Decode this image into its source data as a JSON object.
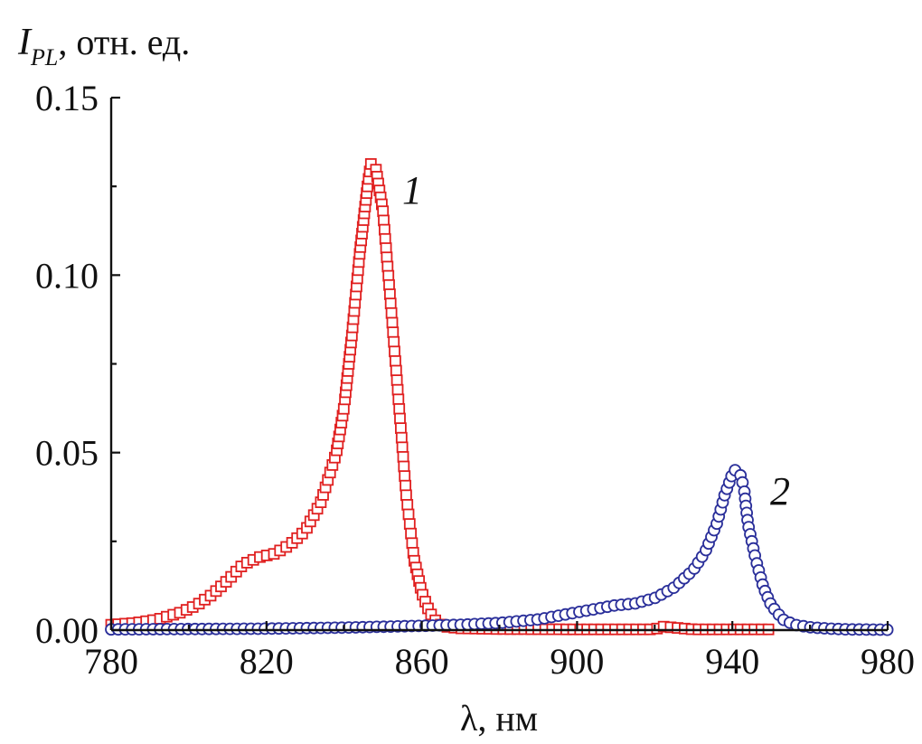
{
  "chart_data": {
    "type": "scatter",
    "title": "",
    "xlabel": "λ, нм",
    "ylabel": {
      "main": "I",
      "sub": "PL",
      "rest": ", отн. ед."
    },
    "xlim": [
      780,
      980
    ],
    "ylim": [
      0,
      0.15
    ],
    "x_ticks": [
      "780",
      "820",
      "860",
      "900",
      "940",
      "980"
    ],
    "y_ticks": [
      "0.00",
      "0.05",
      "0.10",
      "0.15"
    ],
    "grid": false,
    "legend": "none",
    "series": [
      {
        "label": "1",
        "color": "#e02020",
        "marker": "square-open",
        "line": true,
        "x": [
          780,
          786,
          792,
          798,
          802,
          806,
          810,
          814,
          818,
          822,
          826,
          830,
          834,
          838,
          840,
          842,
          844,
          846,
          847,
          848,
          850,
          852,
          854,
          856,
          858,
          860,
          862,
          864,
          866,
          870,
          880,
          900,
          920,
          922,
          930,
          940,
          950
        ],
        "y": [
          0.0015,
          0.002,
          0.003,
          0.005,
          0.007,
          0.01,
          0.014,
          0.0185,
          0.0205,
          0.0215,
          0.024,
          0.028,
          0.036,
          0.05,
          0.063,
          0.083,
          0.106,
          0.125,
          0.132,
          0.131,
          0.118,
          0.092,
          0.065,
          0.038,
          0.02,
          0.0105,
          0.005,
          0.002,
          0.001,
          0.0005,
          0.0003,
          0.0002,
          0.0002,
          0.001,
          0.0002,
          0.0002,
          0.0002
        ]
      },
      {
        "label": "2",
        "color": "#2a2f9a",
        "marker": "circle-open",
        "line": true,
        "x": [
          780,
          800,
          820,
          840,
          860,
          870,
          880,
          890,
          900,
          905,
          910,
          915,
          920,
          925,
          930,
          933,
          936,
          938,
          940,
          941,
          942,
          943,
          944,
          946,
          948,
          950,
          953,
          956,
          960,
          965,
          970,
          980
        ],
        "y": [
          0.0002,
          0.0003,
          0.0004,
          0.0007,
          0.0012,
          0.0015,
          0.002,
          0.003,
          0.005,
          0.006,
          0.007,
          0.0075,
          0.009,
          0.012,
          0.017,
          0.022,
          0.03,
          0.038,
          0.044,
          0.0455,
          0.044,
          0.04,
          0.03,
          0.02,
          0.012,
          0.007,
          0.003,
          0.0015,
          0.0008,
          0.0004,
          0.0002,
          0.0001
        ]
      }
    ]
  }
}
